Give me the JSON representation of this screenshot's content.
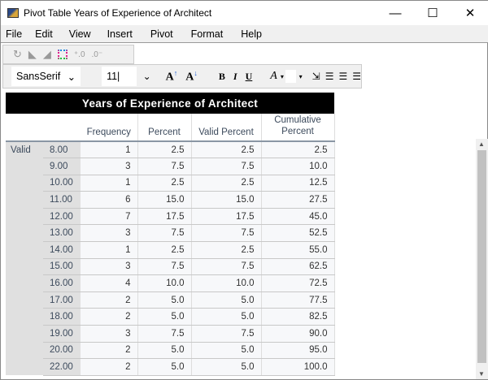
{
  "window": {
    "title": "Pivot Table Years of Experience of Architect",
    "minimize": "—",
    "maximize": "☐",
    "close": "✕"
  },
  "menu": [
    "File",
    "Edit",
    "View",
    "Insert",
    "Pivot",
    "Format",
    "Help"
  ],
  "toolbar": {
    "icons": [
      "undo-icon",
      "undo-move-icon",
      "redo-move-icon",
      "pivoting-trays-icon",
      "increase-decimal-icon",
      "decrease-decimal-icon"
    ],
    "font": "SansSerif",
    "font_chevron": "⌄",
    "size": "11",
    "size_chevron": "⌄",
    "grow": "A",
    "shrink": "A",
    "bold": "B",
    "italic": "I",
    "underline": "U",
    "text_color": "A"
  },
  "table": {
    "title": "Years of Experience of Architect",
    "columns": [
      "Frequency",
      "Percent",
      "Valid Percent",
      "Cumulative Percent"
    ],
    "group": "Valid",
    "rows": [
      [
        "8.00",
        "1",
        "2.5",
        "2.5",
        "2.5"
      ],
      [
        "9.00",
        "3",
        "7.5",
        "7.5",
        "10.0"
      ],
      [
        "10.00",
        "1",
        "2.5",
        "2.5",
        "12.5"
      ],
      [
        "11.00",
        "6",
        "15.0",
        "15.0",
        "27.5"
      ],
      [
        "12.00",
        "7",
        "17.5",
        "17.5",
        "45.0"
      ],
      [
        "13.00",
        "3",
        "7.5",
        "7.5",
        "52.5"
      ],
      [
        "14.00",
        "1",
        "2.5",
        "2.5",
        "55.0"
      ],
      [
        "15.00",
        "3",
        "7.5",
        "7.5",
        "62.5"
      ],
      [
        "16.00",
        "4",
        "10.0",
        "10.0",
        "72.5"
      ],
      [
        "17.00",
        "2",
        "5.0",
        "5.0",
        "77.5"
      ],
      [
        "18.00",
        "2",
        "5.0",
        "5.0",
        "82.5"
      ],
      [
        "19.00",
        "3",
        "7.5",
        "7.5",
        "90.0"
      ],
      [
        "20.00",
        "2",
        "5.0",
        "5.0",
        "95.0"
      ],
      [
        "22.00",
        "2",
        "5.0",
        "5.0",
        "100.0"
      ]
    ]
  }
}
